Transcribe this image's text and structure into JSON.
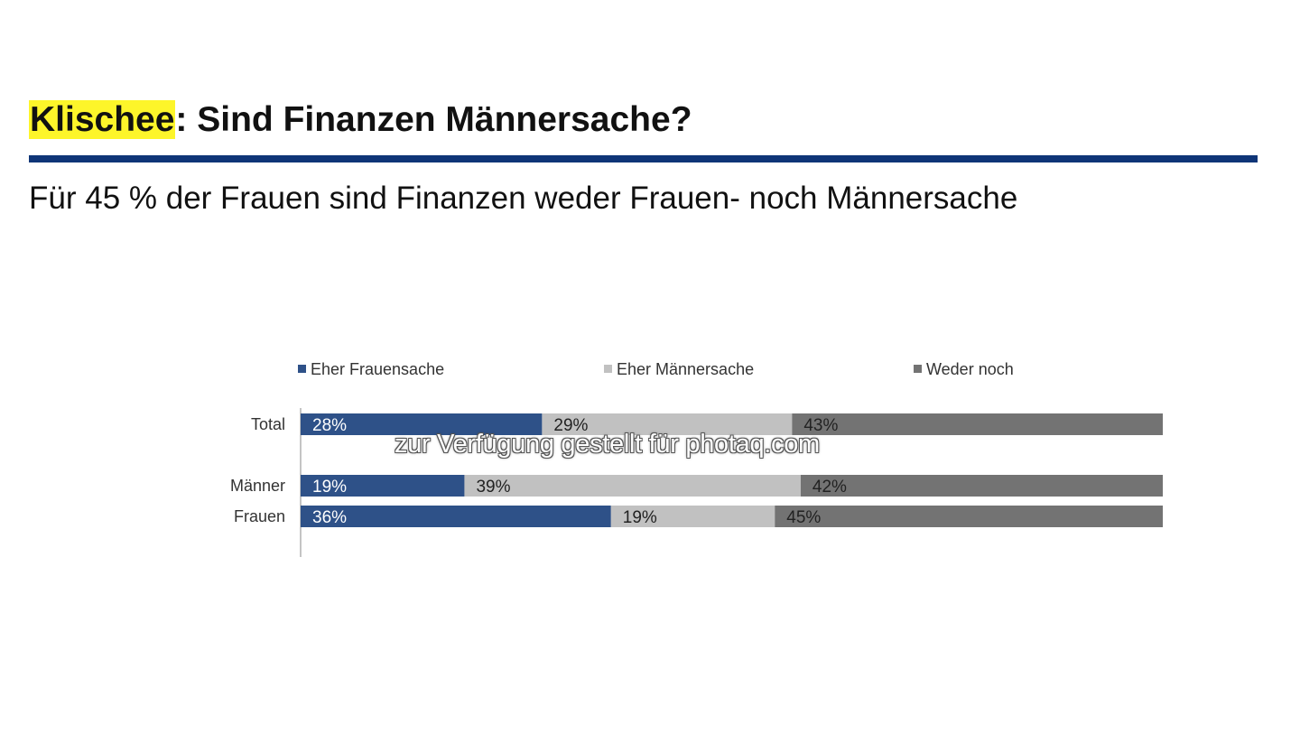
{
  "slide": {
    "title_highlight": "Klischee",
    "title_rest": ": Sind Finanzen Männersache?",
    "subtitle": "Für 45 % der Frauen sind Finanzen weder Frauen- noch Männersache",
    "watermark": "zur Verfügung gestellt für photaq.com"
  },
  "chart_data": {
    "type": "bar",
    "orientation": "horizontal",
    "stacked": true,
    "categories": [
      "Total",
      "Männer",
      "Frauen"
    ],
    "series": [
      {
        "name": "Eher Frauensache",
        "values": [
          28,
          19,
          36
        ],
        "color": "#2e5188",
        "label_color": "#ffffff"
      },
      {
        "name": "Eher Männersache",
        "values": [
          29,
          39,
          19
        ],
        "color": "#c1c1c1",
        "label_color": "#222222"
      },
      {
        "name": "Weder noch",
        "values": [
          43,
          42,
          45
        ],
        "color": "#737373",
        "label_color": "#222222"
      }
    ],
    "value_suffix": "%",
    "xlim": [
      0,
      100
    ],
    "legend_position": "top",
    "grid": false
  }
}
